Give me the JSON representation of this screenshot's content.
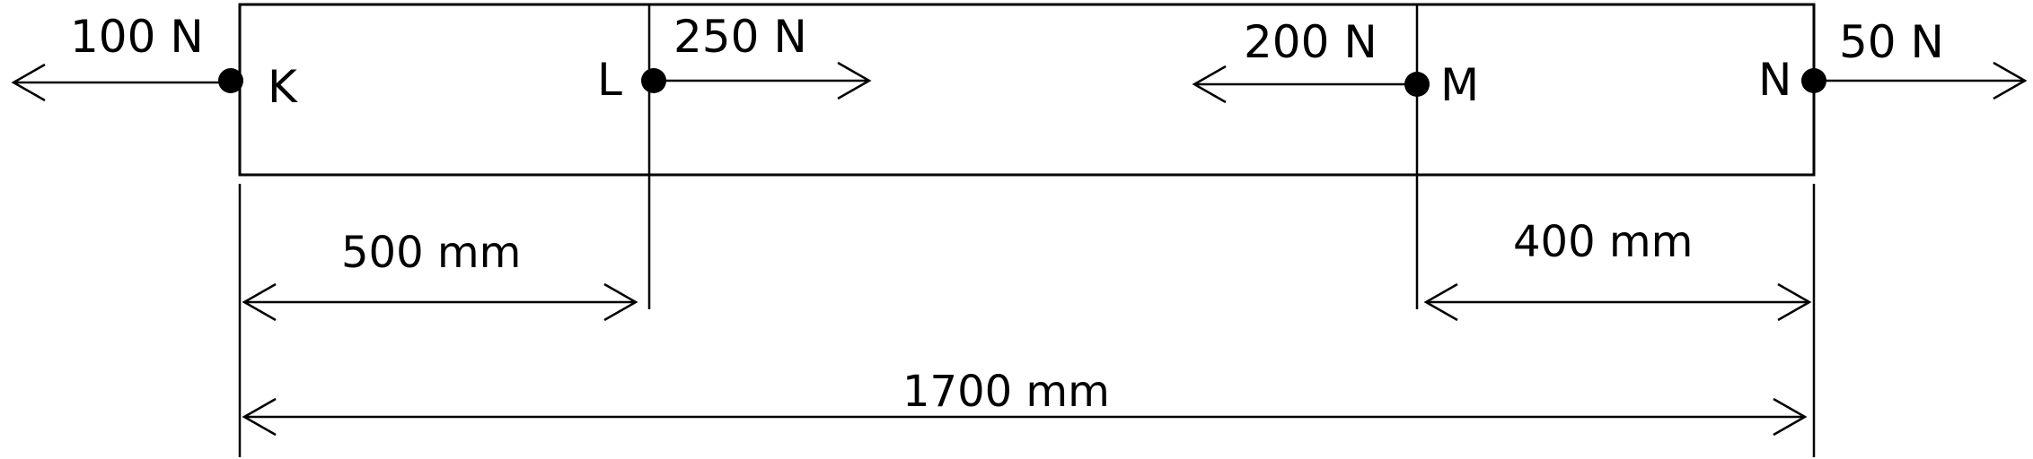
{
  "points": [
    {
      "id": "K",
      "label": "K"
    },
    {
      "id": "L",
      "label": "L"
    },
    {
      "id": "M",
      "label": "M"
    },
    {
      "id": "N",
      "label": "N"
    }
  ],
  "forces": [
    {
      "point": "K",
      "label": "100 N",
      "direction": "left"
    },
    {
      "point": "L",
      "label": "250 N",
      "direction": "right"
    },
    {
      "point": "M",
      "label": "200 N",
      "direction": "left"
    },
    {
      "point": "N",
      "label": "50 N",
      "direction": "right"
    }
  ],
  "dimensions": [
    {
      "id": "KL",
      "label": "500 mm"
    },
    {
      "id": "MN",
      "label": "400 mm"
    },
    {
      "id": "KN",
      "label": "1700 mm"
    }
  ]
}
